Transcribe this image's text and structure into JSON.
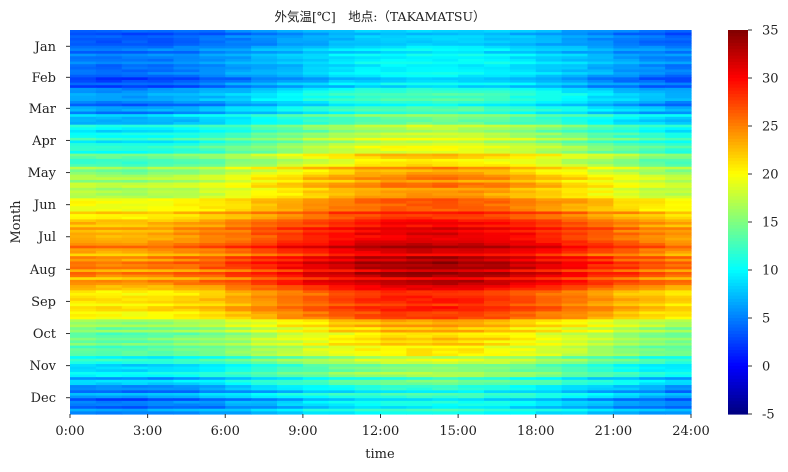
{
  "chart_data": {
    "type": "heatmap",
    "title": "外気温[℃]　地点:（TAKAMATSU）",
    "xlabel": "time",
    "ylabel": "Month",
    "x_ticks": [
      "0:00",
      "3:00",
      "6:00",
      "9:00",
      "12:00",
      "15:00",
      "18:00",
      "21:00",
      "24:00"
    ],
    "y_ticks": [
      "Jan",
      "Feb",
      "Mar",
      "Apr",
      "May",
      "Jun",
      "Jul",
      "Aug",
      "Sep",
      "Oct",
      "Nov",
      "Dec"
    ],
    "colorbar": {
      "colormap": "jet",
      "min": -5,
      "max": 35,
      "ticks": [
        -5,
        0,
        5,
        10,
        15,
        20,
        25,
        30,
        35
      ]
    },
    "x_range_hours": [
      0,
      24
    ],
    "rows": "daily (365), 12 months",
    "monthly_mean_temp_c": {
      "Jan": 5.5,
      "Feb": 6.5,
      "Mar": 9.5,
      "Apr": 15.0,
      "May": 19.5,
      "Jun": 23.0,
      "Jul": 27.5,
      "Aug": 28.5,
      "Sep": 25.0,
      "Oct": 18.5,
      "Nov": 13.0,
      "Dec": 7.5
    },
    "monthly_daily_amplitude_c": {
      "Jan": 2.5,
      "Feb": 3.0,
      "Mar": 3.5,
      "Apr": 4.0,
      "May": 4.5,
      "Jun": 3.5,
      "Jul": 4.0,
      "Aug": 4.5,
      "Sep": 4.0,
      "Oct": 4.0,
      "Nov": 3.5,
      "Dec": 3.0
    },
    "peak_time": "14:00"
  }
}
